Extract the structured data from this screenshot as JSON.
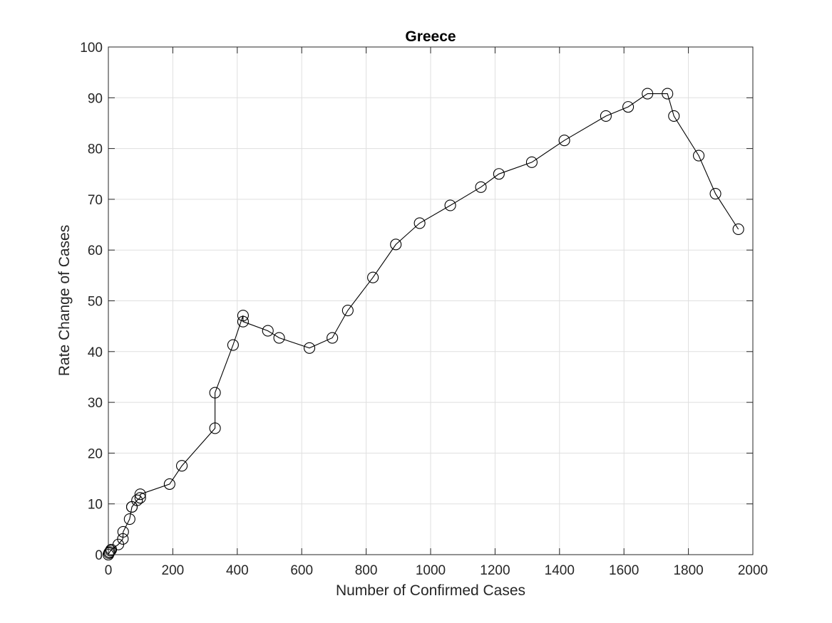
{
  "chart_data": {
    "type": "line",
    "title": "Greece",
    "xlabel": "Number of Confirmed Cases",
    "ylabel": "Rate Change of Cases",
    "xlim": [
      0,
      2000
    ],
    "ylim": [
      0,
      100
    ],
    "xticks": [
      0,
      200,
      400,
      600,
      800,
      1000,
      1200,
      1400,
      1600,
      1800,
      2000
    ],
    "yticks": [
      0,
      10,
      20,
      30,
      40,
      50,
      60,
      70,
      80,
      90,
      100
    ],
    "grid": true,
    "marker": "circle",
    "series": [
      {
        "x": [
          0,
          2,
          4,
          7,
          9,
          31,
          45,
          46,
          66,
          73,
          73,
          89,
          99,
          99,
          190,
          228,
          331,
          331,
          387,
          418,
          418,
          495,
          530,
          624,
          695,
          743,
          821,
          892,
          966,
          1061,
          1156,
          1212,
          1314,
          1415,
          1544,
          1613,
          1673,
          1735,
          1755,
          1832,
          1884,
          1955
        ],
        "y": [
          0,
          0.3,
          0.5,
          0.8,
          1.0,
          2.0,
          3.1,
          4.5,
          7.0,
          9.4,
          9.4,
          10.7,
          11.2,
          11.9,
          13.9,
          17.5,
          24.9,
          31.9,
          41.3,
          47.1,
          45.9,
          44.1,
          42.7,
          40.7,
          42.7,
          48.1,
          54.6,
          61.1,
          65.3,
          68.8,
          72.4,
          75.0,
          77.3,
          81.6,
          86.4,
          88.2,
          90.8,
          90.8,
          86.4,
          78.6,
          71.1,
          64.1
        ]
      }
    ]
  }
}
